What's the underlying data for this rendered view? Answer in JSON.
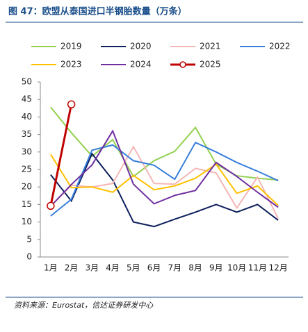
{
  "chart_data": {
    "type": "line",
    "title": "图 47：欧盟从泰国进口半钢胎数量（万条）",
    "source": "资料来源：Eurostat，信达证券研发中心",
    "categories": [
      "1月",
      "2月",
      "3月",
      "4月",
      "5月",
      "6月",
      "7月",
      "8月",
      "9月",
      "10月",
      "11月",
      "12月"
    ],
    "ylim": [
      0,
      50
    ],
    "yticks": [
      0,
      5,
      10,
      15,
      20,
      25,
      30,
      35,
      40,
      45,
      50
    ],
    "series": [
      {
        "name": "2019",
        "color": "#92d050",
        "values": [
          42.8,
          35.5,
          28.8,
          33.5,
          23,
          27.5,
          30.2,
          37,
          26.5,
          23.2,
          22.5,
          22
        ]
      },
      {
        "name": "2020",
        "color": "#0d1f5c",
        "values": [
          23.5,
          16,
          29.5,
          22,
          10,
          8.7,
          10.8,
          12.8,
          15,
          12.8,
          15,
          10.5
        ]
      },
      {
        "name": "2021",
        "color": "#f4b6b6",
        "values": [
          14.5,
          20.5,
          20,
          21,
          31.5,
          21,
          20.8,
          25.3,
          24,
          14,
          22.8,
          11
        ]
      },
      {
        "name": "2022",
        "color": "#3a7fdc",
        "values": [
          11.7,
          16.5,
          30.5,
          32,
          27.5,
          26.2,
          22.2,
          32.7,
          30,
          27,
          24.5,
          21.8
        ]
      },
      {
        "name": "2023",
        "color": "#ffc000",
        "values": [
          29.3,
          19.8,
          20,
          18.5,
          23.3,
          19.2,
          20.3,
          22.5,
          26.5,
          18.2,
          20.3,
          14.7
        ]
      },
      {
        "name": "2024",
        "color": "#7030a0",
        "values": [
          14.5,
          20.7,
          26.3,
          36,
          20.8,
          15.2,
          17.6,
          19,
          27,
          23,
          18.5,
          14.2
        ]
      },
      {
        "name": "2025",
        "color": "#c00000",
        "marker": true,
        "values": [
          14.6,
          43.6,
          null,
          null,
          null,
          null,
          null,
          null,
          null,
          null,
          null,
          null
        ]
      }
    ]
  }
}
